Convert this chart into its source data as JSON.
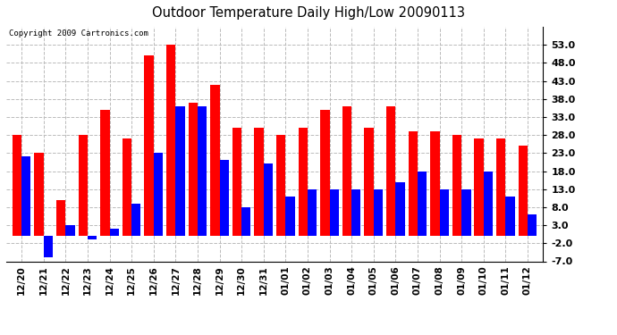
{
  "title": "Outdoor Temperature Daily High/Low 20090113",
  "copyright": "Copyright 2009 Cartronics.com",
  "dates": [
    "12/20",
    "12/21",
    "12/22",
    "12/23",
    "12/24",
    "12/25",
    "12/26",
    "12/27",
    "12/28",
    "12/29",
    "12/30",
    "12/31",
    "01/01",
    "01/02",
    "01/03",
    "01/04",
    "01/05",
    "01/06",
    "01/07",
    "01/08",
    "01/09",
    "01/10",
    "01/11",
    "01/12"
  ],
  "highs": [
    28,
    23,
    10,
    28,
    35,
    27,
    50,
    53,
    37,
    42,
    30,
    30,
    28,
    30,
    35,
    36,
    30,
    36,
    29,
    29,
    28,
    27,
    27,
    25
  ],
  "lows": [
    22,
    -6,
    3,
    -1,
    2,
    9,
    23,
    36,
    36,
    21,
    8,
    20,
    11,
    13,
    13,
    13,
    13,
    15,
    18,
    13,
    13,
    18,
    11,
    6
  ],
  "high_color": "#ff0000",
  "low_color": "#0000ff",
  "background_color": "#ffffff",
  "grid_color": "#bbbbbb",
  "ylim_min": -7,
  "ylim_max": 58,
  "yticks": [
    -7.0,
    -2.0,
    3.0,
    8.0,
    13.0,
    18.0,
    23.0,
    28.0,
    33.0,
    38.0,
    43.0,
    48.0,
    53.0
  ],
  "bar_width": 0.42,
  "figsize": [
    6.9,
    3.75
  ],
  "dpi": 100
}
